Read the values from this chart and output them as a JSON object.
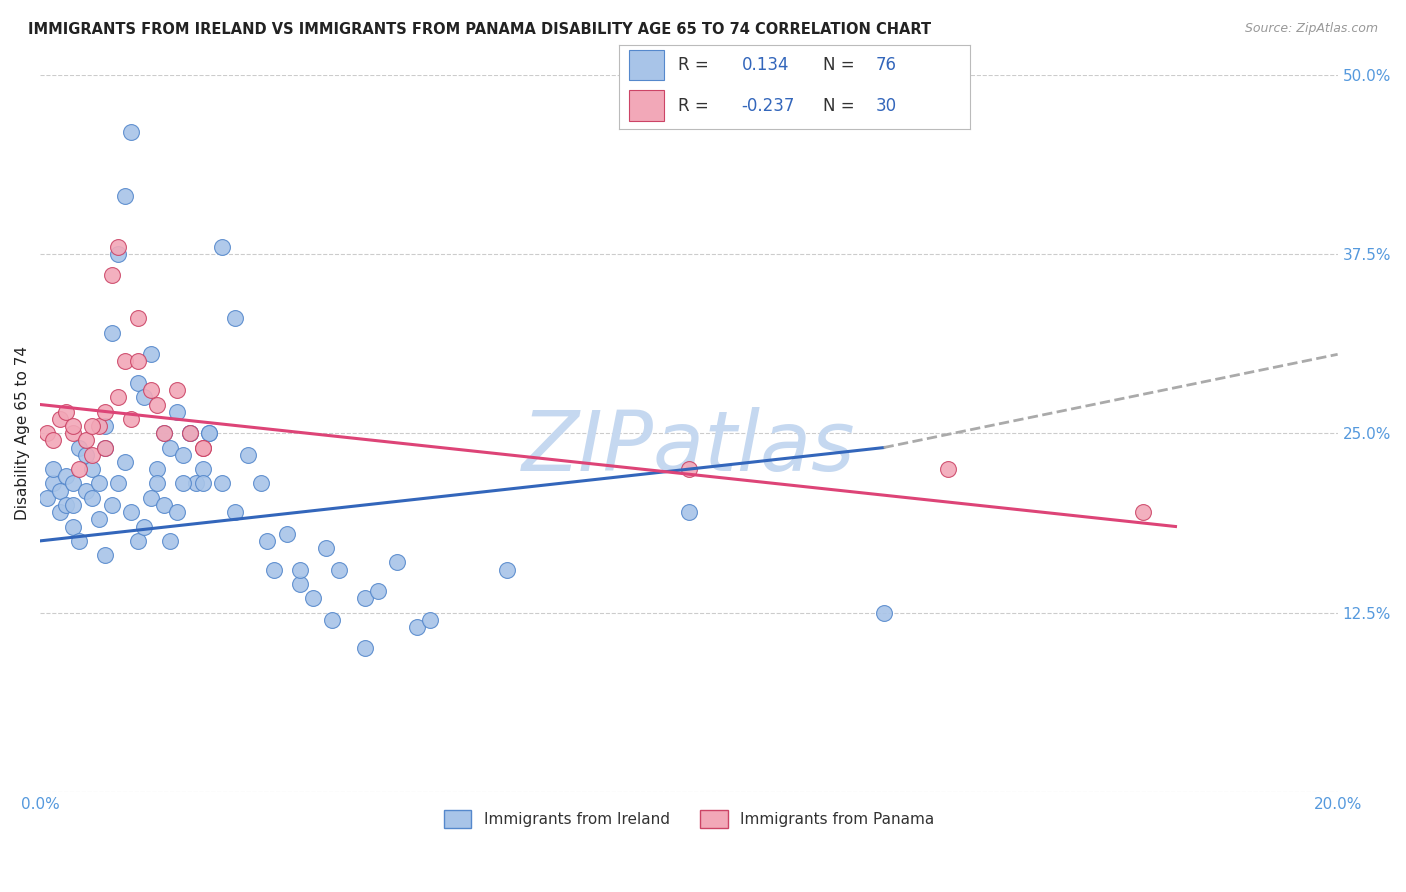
{
  "title": "IMMIGRANTS FROM IRELAND VS IMMIGRANTS FROM PANAMA DISABILITY AGE 65 TO 74 CORRELATION CHART",
  "source": "Source: ZipAtlas.com",
  "ylabel": "Disability Age 65 to 74",
  "xlim": [
    0.0,
    0.2
  ],
  "ylim": [
    0.0,
    0.5
  ],
  "xticks": [
    0.0,
    0.04,
    0.08,
    0.12,
    0.16,
    0.2
  ],
  "yticks": [
    0.0,
    0.125,
    0.25,
    0.375,
    0.5
  ],
  "ireland_R": 0.134,
  "ireland_N": 76,
  "panama_R": -0.237,
  "panama_N": 30,
  "ireland_color": "#a8c4e8",
  "panama_color": "#f2a8b8",
  "ireland_edge_color": "#5588cc",
  "panama_edge_color": "#cc4466",
  "ireland_line_color": "#3366bb",
  "panama_line_color": "#dd4477",
  "regression_ext_color": "#aaaaaa",
  "background_color": "#ffffff",
  "grid_color": "#cccccc",
  "title_color": "#222222",
  "axis_label_color": "#5599dd",
  "watermark_color": "#c5d8f0",
  "legend_text_color": "#333333",
  "legend_value_color": "#3366bb",
  "ireland_scatter_x": [
    0.001,
    0.002,
    0.002,
    0.003,
    0.003,
    0.004,
    0.004,
    0.005,
    0.005,
    0.005,
    0.006,
    0.006,
    0.007,
    0.007,
    0.008,
    0.008,
    0.009,
    0.009,
    0.01,
    0.01,
    0.011,
    0.012,
    0.013,
    0.014,
    0.015,
    0.016,
    0.017,
    0.018,
    0.019,
    0.02,
    0.021,
    0.022,
    0.023,
    0.024,
    0.025,
    0.026,
    0.028,
    0.03,
    0.032,
    0.034,
    0.036,
    0.038,
    0.04,
    0.042,
    0.044,
    0.046,
    0.05,
    0.052,
    0.055,
    0.058,
    0.01,
    0.011,
    0.012,
    0.013,
    0.014,
    0.015,
    0.016,
    0.017,
    0.018,
    0.019,
    0.02,
    0.021,
    0.022,
    0.023,
    0.025,
    0.026,
    0.028,
    0.03,
    0.035,
    0.04,
    0.045,
    0.05,
    0.06,
    0.072,
    0.1,
    0.13
  ],
  "ireland_scatter_y": [
    0.205,
    0.215,
    0.225,
    0.195,
    0.21,
    0.2,
    0.22,
    0.185,
    0.2,
    0.215,
    0.175,
    0.24,
    0.21,
    0.235,
    0.205,
    0.225,
    0.19,
    0.215,
    0.255,
    0.24,
    0.32,
    0.375,
    0.415,
    0.46,
    0.285,
    0.275,
    0.305,
    0.225,
    0.25,
    0.24,
    0.265,
    0.235,
    0.25,
    0.215,
    0.225,
    0.25,
    0.38,
    0.33,
    0.235,
    0.215,
    0.155,
    0.18,
    0.145,
    0.135,
    0.17,
    0.155,
    0.135,
    0.14,
    0.16,
    0.115,
    0.165,
    0.2,
    0.215,
    0.23,
    0.195,
    0.175,
    0.185,
    0.205,
    0.215,
    0.2,
    0.175,
    0.195,
    0.215,
    0.25,
    0.215,
    0.25,
    0.215,
    0.195,
    0.175,
    0.155,
    0.12,
    0.1,
    0.12,
    0.155,
    0.195,
    0.125
  ],
  "panama_scatter_x": [
    0.001,
    0.002,
    0.003,
    0.004,
    0.005,
    0.006,
    0.007,
    0.008,
    0.009,
    0.01,
    0.011,
    0.012,
    0.013,
    0.014,
    0.015,
    0.017,
    0.019,
    0.021,
    0.023,
    0.025,
    0.005,
    0.008,
    0.01,
    0.012,
    0.015,
    0.018,
    0.025,
    0.1,
    0.14,
    0.17
  ],
  "panama_scatter_y": [
    0.25,
    0.245,
    0.26,
    0.265,
    0.25,
    0.225,
    0.245,
    0.235,
    0.255,
    0.24,
    0.36,
    0.38,
    0.3,
    0.26,
    0.33,
    0.28,
    0.25,
    0.28,
    0.25,
    0.24,
    0.255,
    0.255,
    0.265,
    0.275,
    0.3,
    0.27,
    0.24,
    0.225,
    0.225,
    0.195
  ],
  "ireland_line_x0": 0.0,
  "ireland_line_x1": 0.13,
  "ireland_line_x2": 0.2,
  "ireland_line_y0": 0.175,
  "ireland_line_y1": 0.24,
  "ireland_line_y2": 0.305,
  "panama_line_x0": 0.0,
  "panama_line_x1": 0.175,
  "panama_line_y0": 0.27,
  "panama_line_y1": 0.185
}
